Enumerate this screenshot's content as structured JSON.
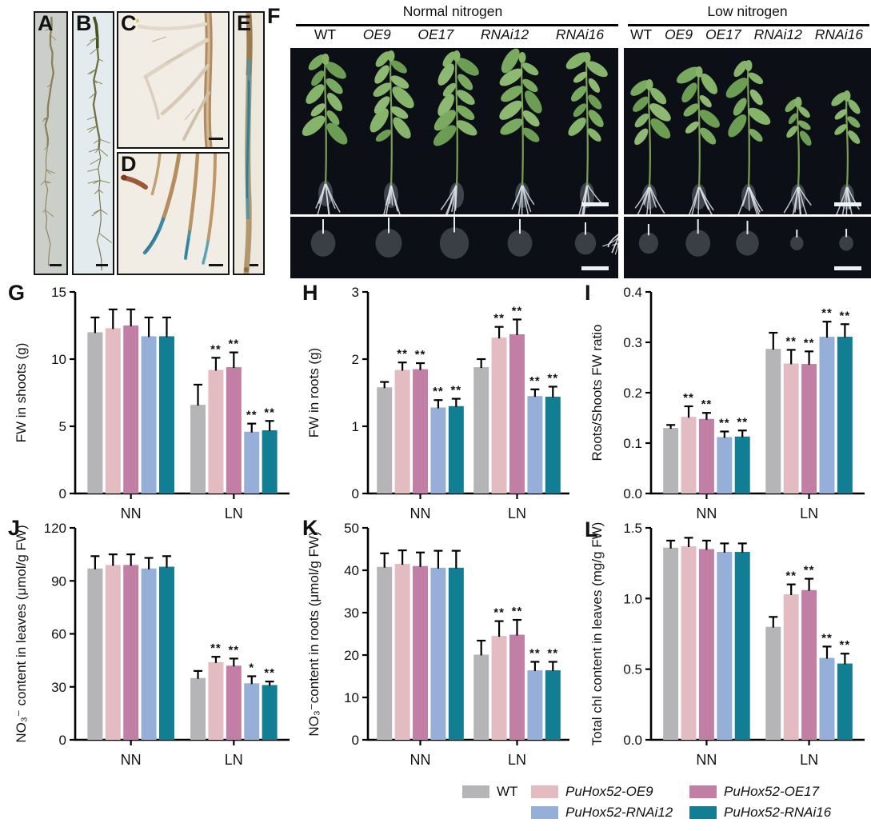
{
  "panels": {
    "a": "A",
    "b": "B",
    "c": "C",
    "d": "D",
    "e": "E",
    "f": "F",
    "g": "G",
    "h": "H",
    "i": "I",
    "j": "J",
    "k": "K",
    "l": "L"
  },
  "panel_f": {
    "conditions": [
      {
        "title": "Normal nitrogen",
        "genotypes": [
          "WT",
          "OE9",
          "OE17",
          "RNAi12",
          "RNAi16"
        ]
      },
      {
        "title": "Low nitrogen",
        "genotypes": [
          "WT",
          "OE9",
          "OE17",
          "RNAi12",
          "RNAi16"
        ]
      }
    ]
  },
  "legend": {
    "items": [
      {
        "label": "WT",
        "color": "#b5b5b7",
        "italic": false
      },
      {
        "label": "PuHox52-OE9",
        "color": "#e3bcc2",
        "italic": true
      },
      {
        "label": "PuHox52-OE17",
        "color": "#c27fa5",
        "italic": true
      },
      {
        "label": "PuHox52-RNAi12",
        "color": "#96afd8",
        "italic": true
      },
      {
        "label": "PuHox52-RNAi16",
        "color": "#117e93",
        "italic": true
      }
    ]
  },
  "chart_data": [
    {
      "panel": "G",
      "type": "bar",
      "ylabel": "FW in shoots (g)",
      "ylim": [
        0,
        15
      ],
      "yticks": [
        0,
        5,
        10,
        15
      ],
      "ytick_labels": [
        "0",
        "5",
        "10",
        "15"
      ],
      "categories": [
        "NN",
        "LN"
      ],
      "series": [
        {
          "name": "WT",
          "values": [
            12.0,
            6.6
          ],
          "errors": [
            1.1,
            1.5
          ],
          "sig": [
            "",
            ""
          ]
        },
        {
          "name": "PuHox52-OE9",
          "values": [
            12.3,
            9.2
          ],
          "errors": [
            1.4,
            0.9
          ],
          "sig": [
            "",
            "**"
          ]
        },
        {
          "name": "PuHox52-OE17",
          "values": [
            12.5,
            9.4
          ],
          "errors": [
            1.2,
            1.1
          ],
          "sig": [
            "",
            "**"
          ]
        },
        {
          "name": "PuHox52-RNAi12",
          "values": [
            11.7,
            4.6
          ],
          "errors": [
            1.4,
            0.6
          ],
          "sig": [
            "",
            "**"
          ]
        },
        {
          "name": "PuHox52-RNAi16",
          "values": [
            11.7,
            4.7
          ],
          "errors": [
            1.4,
            0.7
          ],
          "sig": [
            "",
            "**"
          ]
        }
      ]
    },
    {
      "panel": "H",
      "type": "bar",
      "ylabel": "FW in roots (g)",
      "ylim": [
        0,
        3
      ],
      "yticks": [
        0,
        1,
        2,
        3
      ],
      "ytick_labels": [
        "0",
        "1",
        "2",
        "3"
      ],
      "categories": [
        "NN",
        "LN"
      ],
      "series": [
        {
          "name": "WT",
          "values": [
            1.58,
            1.88
          ],
          "errors": [
            0.08,
            0.12
          ],
          "sig": [
            "",
            ""
          ]
        },
        {
          "name": "PuHox52-OE9",
          "values": [
            1.84,
            2.32
          ],
          "errors": [
            0.11,
            0.16
          ],
          "sig": [
            "**",
            "**"
          ]
        },
        {
          "name": "PuHox52-OE17",
          "values": [
            1.85,
            2.37
          ],
          "errors": [
            0.09,
            0.22
          ],
          "sig": [
            "**",
            "**"
          ]
        },
        {
          "name": "PuHox52-RNAi12",
          "values": [
            1.28,
            1.45
          ],
          "errors": [
            0.11,
            0.1
          ],
          "sig": [
            "**",
            "**"
          ]
        },
        {
          "name": "PuHox52-RNAi16",
          "values": [
            1.3,
            1.44
          ],
          "errors": [
            0.11,
            0.15
          ],
          "sig": [
            "**",
            "**"
          ]
        }
      ]
    },
    {
      "panel": "I",
      "type": "bar",
      "ylabel": "Roots/Shoots FW ratio",
      "ylim": [
        0,
        0.4
      ],
      "yticks": [
        0,
        0.1,
        0.2,
        0.3,
        0.4
      ],
      "ytick_labels": [
        "0.0",
        "0.1",
        "0.2",
        "0.3",
        "0.4"
      ],
      "categories": [
        "NN",
        "LN"
      ],
      "series": [
        {
          "name": "WT",
          "values": [
            0.13,
            0.287
          ],
          "errors": [
            0.006,
            0.032
          ],
          "sig": [
            "",
            ""
          ]
        },
        {
          "name": "PuHox52-OE9",
          "values": [
            0.152,
            0.258
          ],
          "errors": [
            0.021,
            0.027
          ],
          "sig": [
            "**",
            "**"
          ]
        },
        {
          "name": "PuHox52-OE17",
          "values": [
            0.148,
            0.257
          ],
          "errors": [
            0.012,
            0.025
          ],
          "sig": [
            "**",
            "**"
          ]
        },
        {
          "name": "PuHox52-RNAi12",
          "values": [
            0.112,
            0.311
          ],
          "errors": [
            0.011,
            0.03
          ],
          "sig": [
            "**",
            "**"
          ]
        },
        {
          "name": "PuHox52-RNAi16",
          "values": [
            0.113,
            0.311
          ],
          "errors": [
            0.012,
            0.025
          ],
          "sig": [
            "**",
            "**"
          ]
        }
      ]
    },
    {
      "panel": "J",
      "type": "bar",
      "ylabel": "NO₃⁻ content in leaves (μmol/g FW)",
      "ylim": [
        0,
        120
      ],
      "yticks": [
        0,
        30,
        60,
        90,
        120
      ],
      "ytick_labels": [
        "0",
        "30",
        "60",
        "90",
        "120"
      ],
      "categories": [
        "NN",
        "LN"
      ],
      "series": [
        {
          "name": "WT",
          "values": [
            97,
            35
          ],
          "errors": [
            7,
            4
          ],
          "sig": [
            "",
            ""
          ]
        },
        {
          "name": "PuHox52-OE9",
          "values": [
            99,
            44
          ],
          "errors": [
            6,
            3
          ],
          "sig": [
            "",
            "**"
          ]
        },
        {
          "name": "PuHox52-OE17",
          "values": [
            99,
            42
          ],
          "errors": [
            6,
            4
          ],
          "sig": [
            "",
            "**"
          ]
        },
        {
          "name": "PuHox52-RNAi12",
          "values": [
            97,
            32
          ],
          "errors": [
            6,
            4
          ],
          "sig": [
            "",
            "*"
          ]
        },
        {
          "name": "PuHox52-RNAi16",
          "values": [
            98,
            31
          ],
          "errors": [
            6,
            2
          ],
          "sig": [
            "",
            "**"
          ]
        }
      ]
    },
    {
      "panel": "K",
      "type": "bar",
      "ylabel": "NO₃⁻content in roots (μmol/g FW)",
      "ylim": [
        0,
        50
      ],
      "yticks": [
        0,
        10,
        20,
        30,
        40,
        50
      ],
      "ytick_labels": [
        "0",
        "10",
        "20",
        "30",
        "40",
        "50"
      ],
      "categories": [
        "NN",
        "LN"
      ],
      "series": [
        {
          "name": "WT",
          "values": [
            40.8,
            20.1
          ],
          "errors": [
            3.2,
            3.3
          ],
          "sig": [
            "",
            ""
          ]
        },
        {
          "name": "PuHox52-OE9",
          "values": [
            41.5,
            24.5
          ],
          "errors": [
            3.2,
            3.5
          ],
          "sig": [
            "",
            "**"
          ]
        },
        {
          "name": "PuHox52-OE17",
          "values": [
            41.0,
            24.8
          ],
          "errors": [
            3.2,
            3.5
          ],
          "sig": [
            "",
            "**"
          ]
        },
        {
          "name": "PuHox52-RNAi12",
          "values": [
            40.6,
            16.4
          ],
          "errors": [
            4.0,
            2.0
          ],
          "sig": [
            "",
            "**"
          ]
        },
        {
          "name": "PuHox52-RNAi16",
          "values": [
            40.6,
            16.4
          ],
          "errors": [
            4.0,
            2.0
          ],
          "sig": [
            "",
            "**"
          ]
        }
      ]
    },
    {
      "panel": "L",
      "type": "bar",
      "ylabel": "Total chl content in leaves (mg/g FW)",
      "ylim": [
        0,
        1.5
      ],
      "yticks": [
        0,
        0.5,
        1.0,
        1.5
      ],
      "ytick_labels": [
        "0.0",
        "0.5",
        "1.0",
        "1.5"
      ],
      "categories": [
        "NN",
        "LN"
      ],
      "series": [
        {
          "name": "WT",
          "values": [
            1.36,
            0.8
          ],
          "errors": [
            0.05,
            0.07
          ],
          "sig": [
            "",
            ""
          ]
        },
        {
          "name": "PuHox52-OE9",
          "values": [
            1.37,
            1.03
          ],
          "errors": [
            0.06,
            0.07
          ],
          "sig": [
            "",
            "**"
          ]
        },
        {
          "name": "PuHox52-OE17",
          "values": [
            1.35,
            1.06
          ],
          "errors": [
            0.06,
            0.08
          ],
          "sig": [
            "",
            "**"
          ]
        },
        {
          "name": "PuHox52-RNAi12",
          "values": [
            1.33,
            0.58
          ],
          "errors": [
            0.06,
            0.08
          ],
          "sig": [
            "",
            "**"
          ]
        },
        {
          "name": "PuHox52-RNAi16",
          "values": [
            1.33,
            0.54
          ],
          "errors": [
            0.06,
            0.07
          ],
          "sig": [
            "",
            "**"
          ]
        }
      ]
    }
  ]
}
